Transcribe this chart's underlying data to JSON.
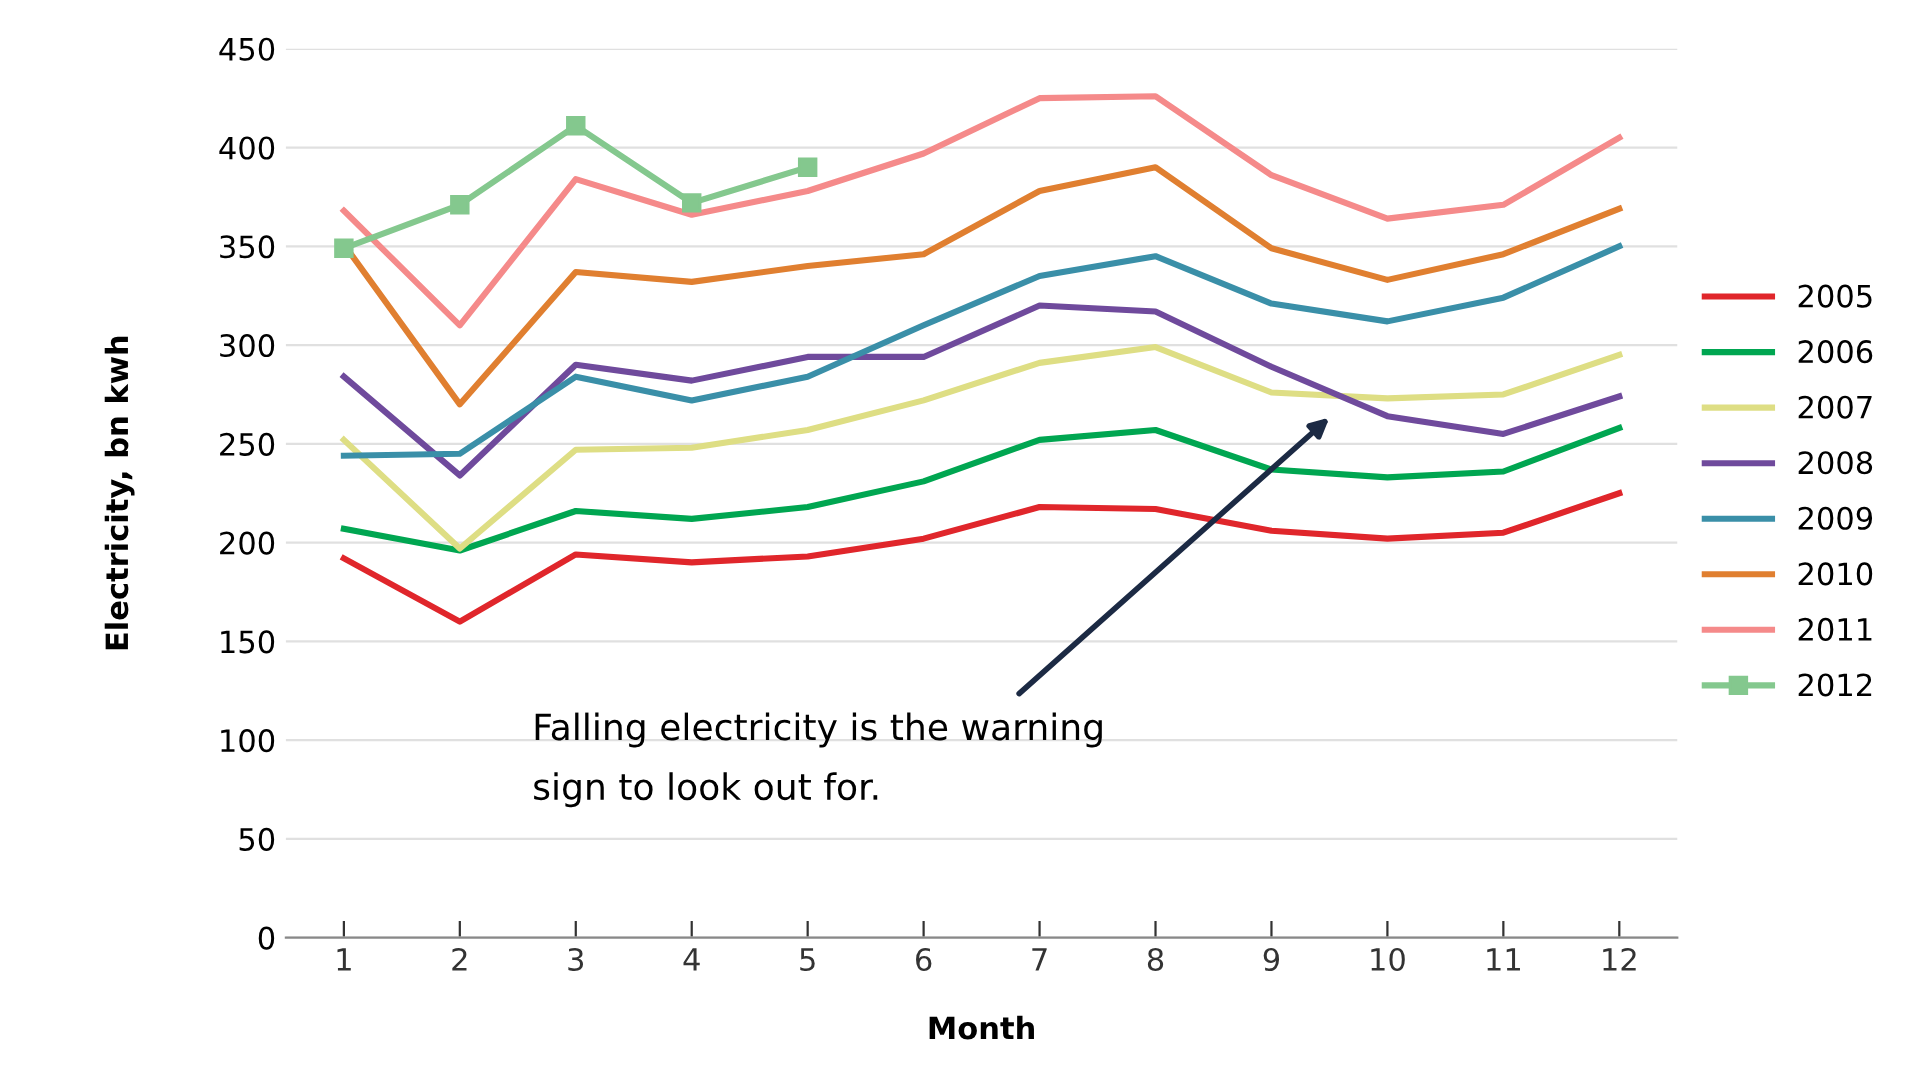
{
  "chart_data": {
    "type": "line",
    "xlabel": "Month",
    "ylabel": "Electricity, bn kwh",
    "categories": [
      "1",
      "2",
      "3",
      "4",
      "5",
      "6",
      "7",
      "8",
      "9",
      "10",
      "11",
      "12"
    ],
    "ylim": [
      0,
      450
    ],
    "yticks": [
      0,
      50,
      100,
      150,
      200,
      250,
      300,
      350,
      400,
      450
    ],
    "grid": "y",
    "legend": "right",
    "line_style": "solid",
    "series": [
      {
        "name": "2005",
        "color": "#e0262b",
        "marker": "none",
        "values": [
          192,
          160,
          194,
          190,
          193,
          202,
          218,
          217,
          206,
          202,
          205,
          225
        ]
      },
      {
        "name": "2006",
        "color": "#00a651",
        "marker": "none",
        "values": [
          207,
          196,
          216,
          212,
          218,
          231,
          252,
          257,
          237,
          233,
          236,
          258
        ]
      },
      {
        "name": "2007",
        "color": "#dede84",
        "marker": "none",
        "values": [
          252,
          197,
          247,
          248,
          257,
          272,
          291,
          299,
          276,
          273,
          275,
          295
        ]
      },
      {
        "name": "2008",
        "color": "#6f4a9c",
        "marker": "none",
        "values": [
          284,
          234,
          290,
          282,
          294,
          294,
          320,
          317,
          289,
          264,
          255,
          274
        ]
      },
      {
        "name": "2009",
        "color": "#3a8fa8",
        "marker": "none",
        "values": [
          244,
          245,
          284,
          272,
          284,
          310,
          335,
          345,
          321,
          312,
          324,
          350
        ]
      },
      {
        "name": "2010",
        "color": "#e07f30",
        "marker": "none",
        "values": [
          351,
          270,
          337,
          332,
          340,
          346,
          378,
          390,
          349,
          333,
          346,
          369
        ]
      },
      {
        "name": "2011",
        "color": "#f58a8a",
        "marker": "none",
        "values": [
          368,
          310,
          384,
          366,
          378,
          397,
          425,
          426,
          386,
          364,
          371,
          405
        ]
      },
      {
        "name": "2012",
        "color": "#84c88e",
        "marker": "square",
        "values": [
          349,
          371,
          411,
          372,
          390,
          null,
          null,
          null,
          null,
          null,
          null,
          null
        ]
      }
    ],
    "annotations": [
      "Falling electricity is the warning\nsign to look out for."
    ]
  }
}
